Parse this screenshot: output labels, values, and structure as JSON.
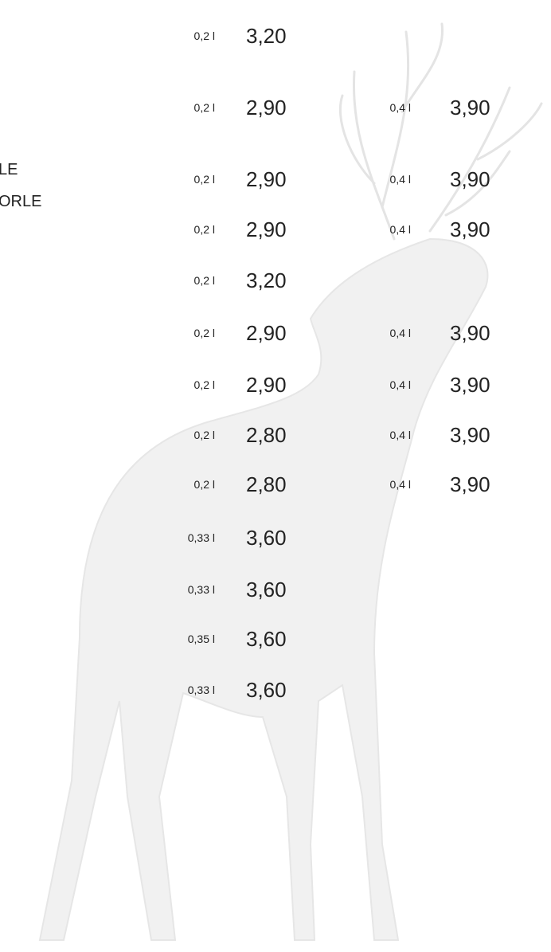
{
  "left_labels": [
    "LE",
    "ORLE"
  ],
  "rows": [
    {
      "small_size": "0,2 l",
      "small_price": "3,20"
    },
    {
      "small_size": "0,2 l",
      "small_price": "2,90",
      "large_size": "0,4 l",
      "large_price": "3,90"
    },
    {
      "small_size": "0,2 l",
      "small_price": "2,90",
      "large_size": "0,4 l",
      "large_price": "3,90"
    },
    {
      "small_size": "0,2 l",
      "small_price": "2,90",
      "large_size": "0,4 l",
      "large_price": "3,90"
    },
    {
      "small_size": "0,2 l",
      "small_price": "3,20"
    },
    {
      "small_size": "0,2 l",
      "small_price": "2,90",
      "large_size": "0,4 l",
      "large_price": "3,90"
    },
    {
      "small_size": "0,2 l",
      "small_price": "2,90",
      "large_size": "0,4 l",
      "large_price": "3,90"
    },
    {
      "small_size": "0,2 l",
      "small_price": "2,80",
      "large_size": "0,4 l",
      "large_price": "3,90"
    },
    {
      "small_size": "0,2 l",
      "small_price": "2,80",
      "large_size": "0,4 l",
      "large_price": "3,90"
    },
    {
      "small_size": "0,33 l",
      "small_price": "3,60"
    },
    {
      "small_size": "0,33 l",
      "small_price": "3,60"
    },
    {
      "small_size": "0,35 l",
      "small_price": "3,60"
    },
    {
      "small_size": "0,33 l",
      "small_price": "3,60"
    }
  ]
}
